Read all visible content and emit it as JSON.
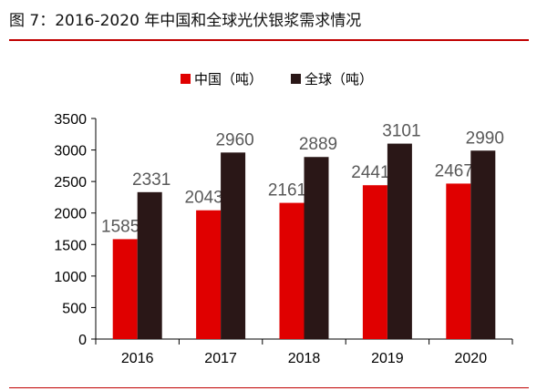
{
  "figure": {
    "title": "图 7：2016-2020 年中国和全球光伏银浆需求情况"
  },
  "colors": {
    "accent_rule": "#c00000",
    "china": "#e00000",
    "global": "#2a1717"
  },
  "chart_data": {
    "type": "bar",
    "categories": [
      "2016",
      "2017",
      "2018",
      "2019",
      "2020"
    ],
    "series": [
      {
        "name": "中国（吨）",
        "values": [
          1585,
          2043,
          2161,
          2441,
          2467
        ]
      },
      {
        "name": "全球（吨）",
        "values": [
          2331,
          2960,
          2889,
          3101,
          2990
        ]
      }
    ],
    "title": "",
    "xlabel": "",
    "ylabel": "",
    "ylim": [
      0,
      3500
    ],
    "yticks": [
      0,
      500,
      1000,
      1500,
      2000,
      2500,
      3000,
      3500
    ],
    "grid": false,
    "legend": "top-center",
    "data_labels": true
  }
}
